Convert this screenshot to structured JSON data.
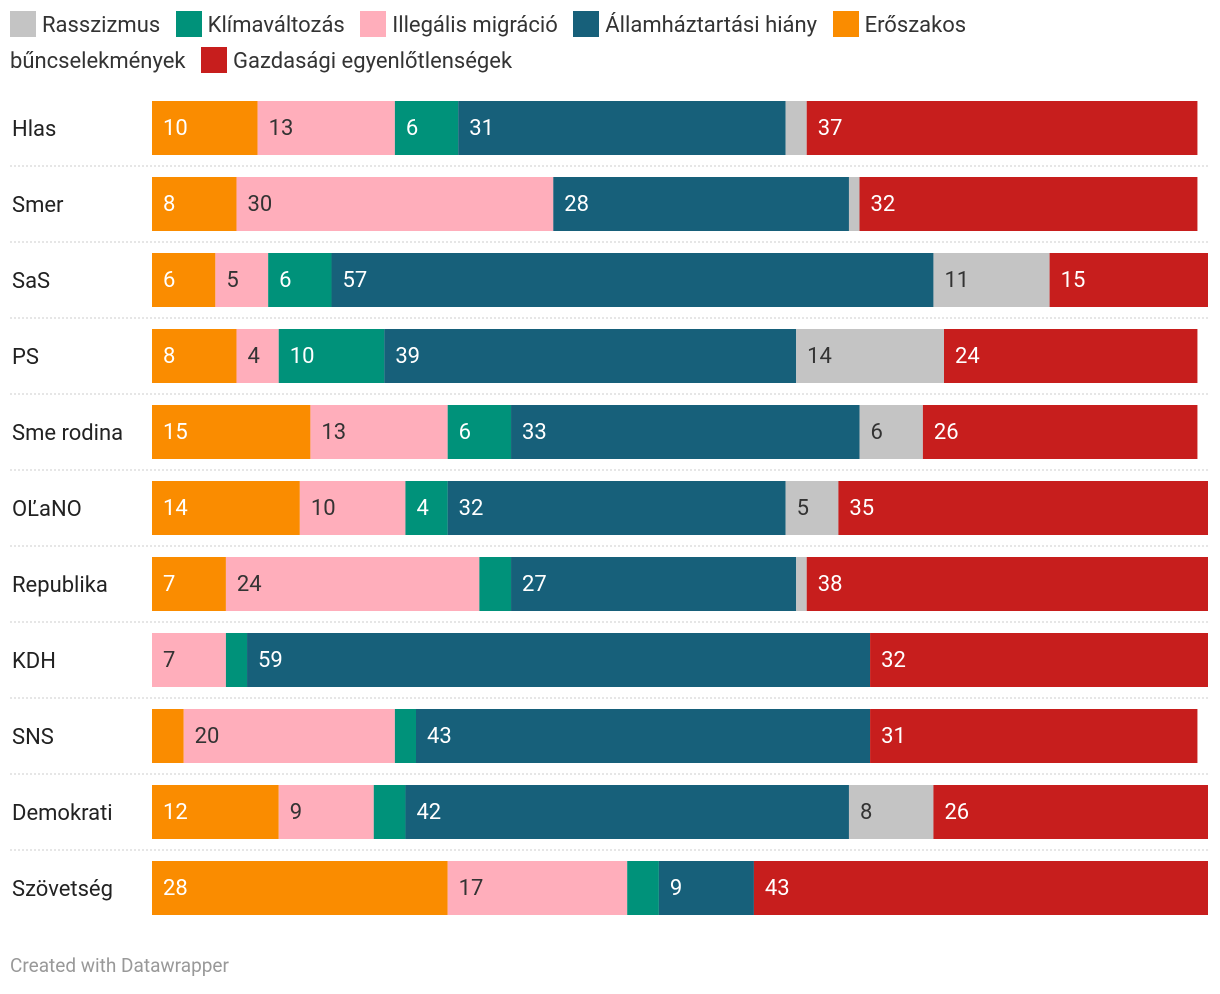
{
  "chart_data": {
    "type": "stacked-bar-horizontal",
    "categories": [
      "Hlas",
      "Smer",
      "SaS",
      "PS",
      "Sme rodina",
      "OĽaNO",
      "Republika",
      "KDH",
      "SNS",
      "Demokrati",
      "Szövetség"
    ],
    "legend_order": [
      4,
      2,
      1,
      3,
      0,
      5
    ],
    "series": [
      {
        "name": "Erőszakos bűncselekmények",
        "color": "#fa8c00",
        "text_color": "#ffffff",
        "values": [
          10,
          8,
          6,
          8,
          15,
          14,
          7,
          0,
          3,
          12,
          28
        ]
      },
      {
        "name": "Illegális migráció",
        "color": "#ffaebb",
        "text_color": "#333333",
        "values": [
          13,
          30,
          5,
          4,
          13,
          10,
          24,
          7,
          20,
          9,
          17
        ]
      },
      {
        "name": "Klímaváltozás",
        "color": "#00927a",
        "text_color": "#ffffff",
        "values": [
          6,
          0,
          6,
          10,
          6,
          4,
          3,
          2,
          2,
          3,
          3
        ]
      },
      {
        "name": "Államháztartási hiány",
        "color": "#17607a",
        "text_color": "#ffffff",
        "values": [
          31,
          28,
          57,
          39,
          33,
          32,
          27,
          59,
          43,
          42,
          9
        ]
      },
      {
        "name": "Rasszizmus",
        "color": "#c4c4c4",
        "text_color": "#333333",
        "values": [
          2,
          1,
          11,
          14,
          6,
          5,
          1,
          0,
          0,
          8,
          0
        ]
      },
      {
        "name": "Gazdasági egyenlőtlenségek",
        "color": "#c71e1d",
        "text_color": "#ffffff",
        "values": [
          37,
          32,
          15,
          24,
          26,
          35,
          38,
          32,
          31,
          26,
          43
        ]
      }
    ],
    "xlim": [
      0,
      100
    ],
    "footer": "Created with Datawrapper"
  }
}
